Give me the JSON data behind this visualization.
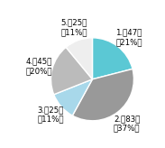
{
  "labels": [
    "1.゠47人\n（21%）",
    "2.゠83人\n（37%）",
    "3.゠25人\n（11%）",
    "4.゠45人\n（20%）",
    "5.゠25人\n（11%）"
  ],
  "values": [
    21,
    37,
    11,
    20,
    11
  ],
  "colors": [
    "#5bc8d4",
    "#999999",
    "#a8d8ea",
    "#bbbbbb",
    "#eeeeee"
  ],
  "startangle": 90,
  "figsize": [
    1.83,
    1.64
  ],
  "dpi": 100,
  "label_fontsize": 6.2,
  "background_color": "#ffffff",
  "edge_color": "#ffffff",
  "edge_linewidth": 1.0
}
